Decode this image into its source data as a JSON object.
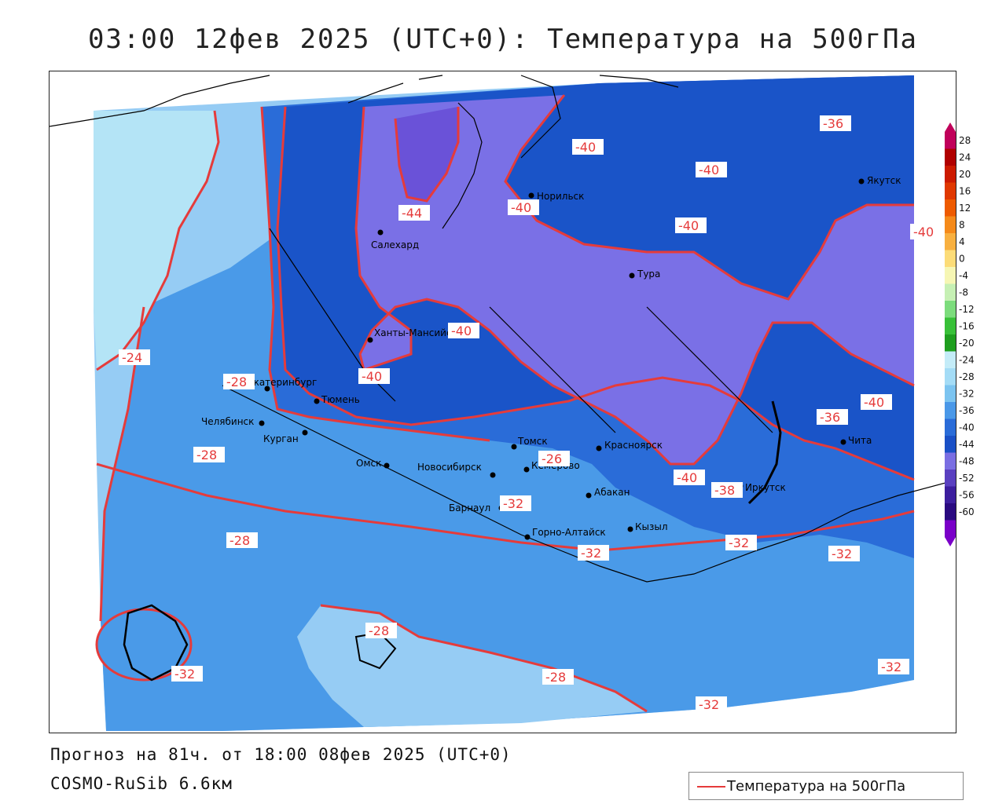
{
  "header": {
    "title": "03:00 12фев 2025 (UTC+0): Температура на 500гПа"
  },
  "footer": {
    "forecast": "Прогноз на 81ч. от 18:00 08фев 2025 (UTC+0)",
    "model": "COSMO-RuSib 6.6км"
  },
  "legend": {
    "label": "Температура на 500гПа",
    "line_color": "#e53b3b"
  },
  "colorbar": {
    "labels": [
      "28",
      "24",
      "20",
      "16",
      "12",
      "8",
      "4",
      "0",
      "-4",
      "-8",
      "-12",
      "-16",
      "-20",
      "-24",
      "-28",
      "-32",
      "-36",
      "-40",
      "-44",
      "-48",
      "-52",
      "-56",
      "-60"
    ],
    "colors": [
      "#c0005a",
      "#b00000",
      "#cc1a00",
      "#e03800",
      "#ee5a00",
      "#f58a1a",
      "#f8b040",
      "#fcdc78",
      "#f6f6b4",
      "#c6f0b4",
      "#7cdc7c",
      "#38c038",
      "#1e9e1e",
      "#c4ecf8",
      "#a4dcf6",
      "#7cc4f0",
      "#4a98e8",
      "#2a6cd8",
      "#1a50c6",
      "#7a6ee2",
      "#5a40c0",
      "#3c1e9e",
      "#2a0a80",
      "#7a00c8"
    ]
  },
  "map": {
    "colors": {
      "t_m24": "#b4e4f6",
      "t_m28": "#96ccf4",
      "t_m32": "#4a9ae8",
      "t_m36": "#2a6cd8",
      "t_m40": "#1a54c8",
      "t_m44": "#7a70e6",
      "t_m48": "#6a52d8",
      "isoline": "#e53b3b"
    },
    "cities": [
      {
        "name": "Норильск"
      },
      {
        "name": "Якутск"
      },
      {
        "name": "Салехард"
      },
      {
        "name": "Тура"
      },
      {
        "name": "Ханты-Мансийск"
      },
      {
        "name": "Екатеринбург"
      },
      {
        "name": "Тюмень"
      },
      {
        "name": "Челябинск"
      },
      {
        "name": "Курган"
      },
      {
        "name": "Омск"
      },
      {
        "name": "Томск"
      },
      {
        "name": "Новосибирск"
      },
      {
        "name": "Кемерово"
      },
      {
        "name": "Красноярск"
      },
      {
        "name": "Абакан"
      },
      {
        "name": "Барнаул"
      },
      {
        "name": "Горно-Алтайск"
      },
      {
        "name": "Кызыл"
      },
      {
        "name": "Иркутск"
      },
      {
        "name": "Чита"
      }
    ],
    "isoline_labels": [
      "-36",
      "-40",
      "-40",
      "-44",
      "-40",
      "-40",
      "-40",
      "-40",
      "-24",
      "-28",
      "-40",
      "-36",
      "-40",
      "-28",
      "-26",
      "-32",
      "-28",
      "-40",
      "-38",
      "-32",
      "-32",
      "-32",
      "-28",
      "-32",
      "-28",
      "-32",
      "-32"
    ]
  }
}
